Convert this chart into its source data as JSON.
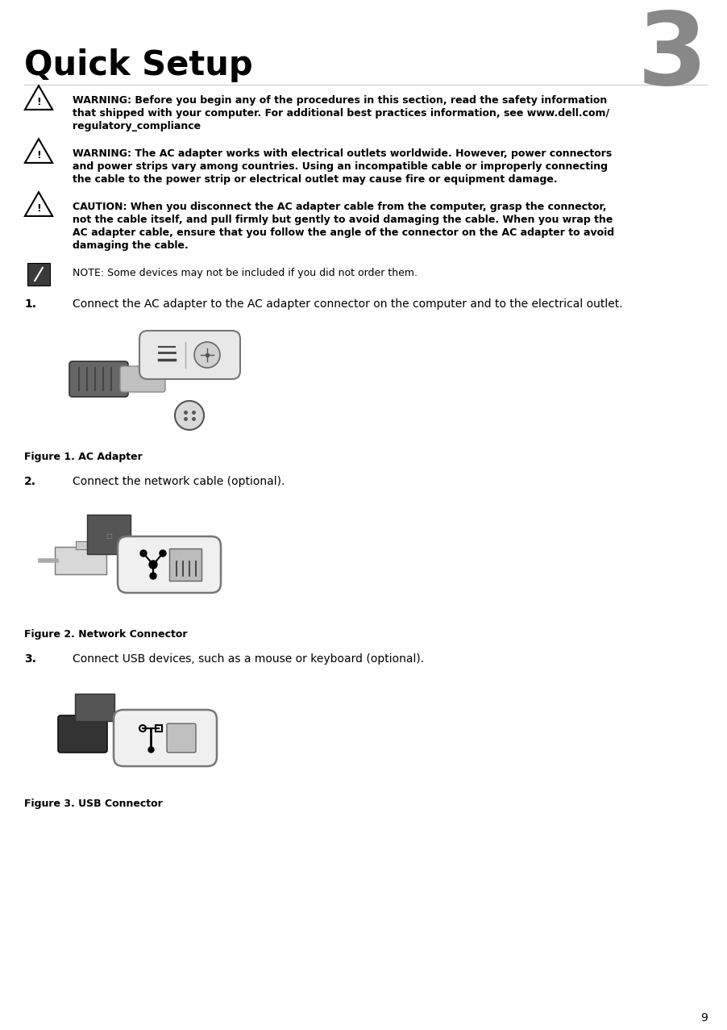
{
  "chapter_number": "3",
  "chapter_title": "Quick Setup",
  "warn1_lines": [
    "WARNING: Before you begin any of the procedures in this section, read the safety information",
    "that shipped with your computer. For additional best practices information, see www.dell.com/",
    "regulatory_compliance"
  ],
  "warn2_lines": [
    "WARNING: The AC adapter works with electrical outlets worldwide. However, power connectors",
    "and power strips vary among countries. Using an incompatible cable or improperly connecting",
    "the cable to the power strip or electrical outlet may cause fire or equipment damage."
  ],
  "caut_lines": [
    "CAUTION: When you disconnect the AC adapter cable from the computer, grasp the connector,",
    "not the cable itself, and pull firmly but gently to avoid damaging the cable. When you wrap the",
    "AC adapter cable, ensure that you follow the angle of the connector on the AC adapter to avoid",
    "damaging the cable."
  ],
  "note_line": "NOTE: Some devices may not be included if you did not order them.",
  "step1": "Connect the AC adapter to the AC adapter connector on the computer and to the electrical outlet.",
  "figure1_caption": "Figure 1. AC Adapter",
  "step2": "Connect the network cable (optional).",
  "figure2_caption": "Figure 2. Network Connector",
  "step3": "Connect USB devices, such as a mouse or keyboard (optional).",
  "figure3_caption": "Figure 3. USB Connector",
  "page_number": "9",
  "bg_color": "#ffffff",
  "text_color": "#000000",
  "chapter_num_color": "#888888"
}
